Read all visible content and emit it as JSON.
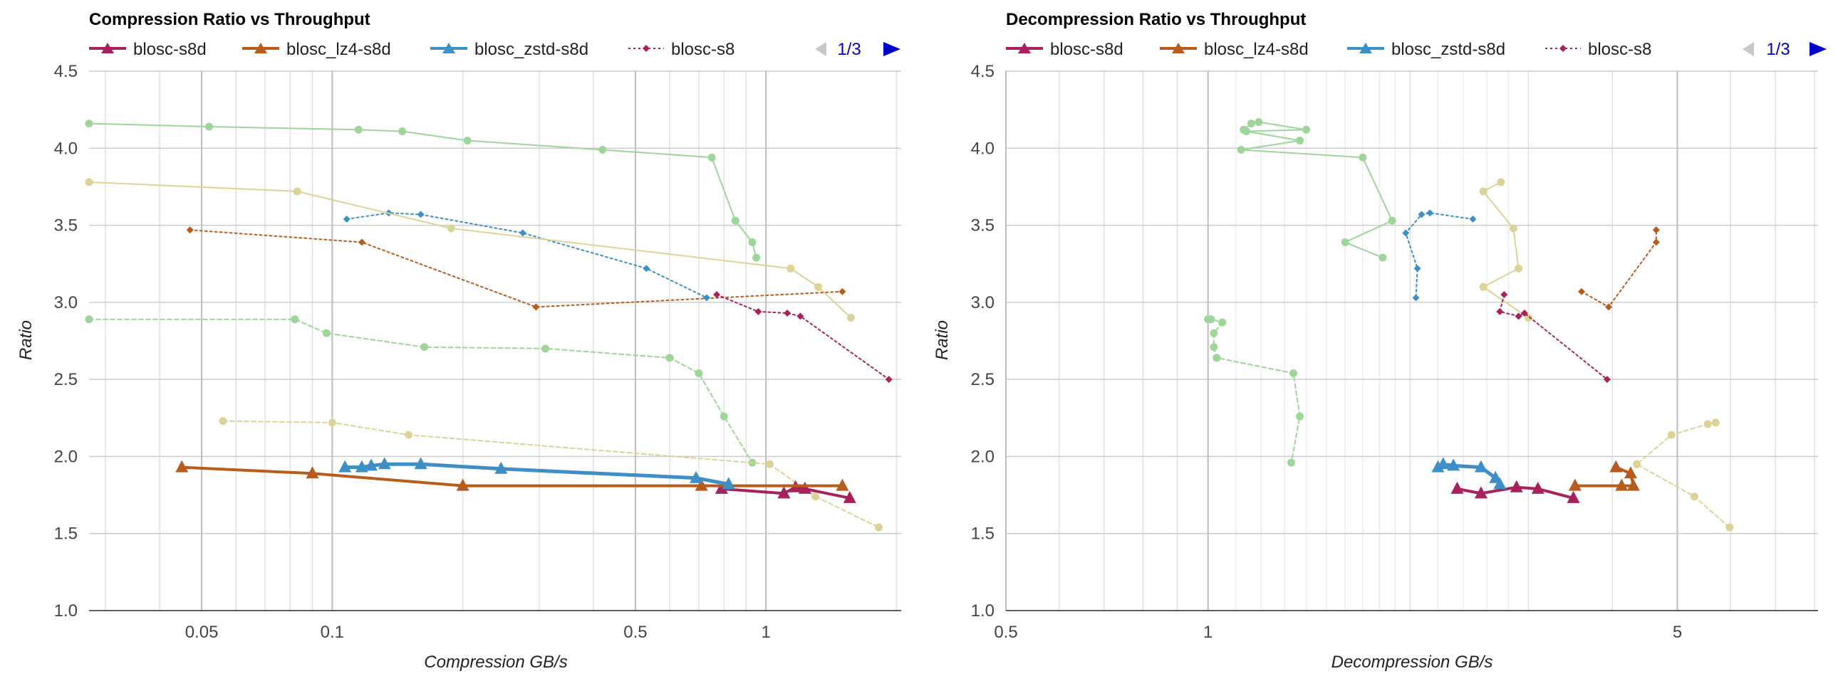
{
  "charts": [
    {
      "id": "compression",
      "title": "Compression Ratio vs Throughput",
      "xlabel": "Compression GB/s",
      "ylabel": "Ratio",
      "x_scale": "log",
      "xlim": [
        0.0275,
        2.05
      ],
      "ylim": [
        1.0,
        4.5
      ],
      "x_major_ticks": [
        {
          "v": 0.05,
          "label": "0.05"
        },
        {
          "v": 0.1,
          "label": "0.1"
        },
        {
          "v": 0.5,
          "label": "0.5"
        },
        {
          "v": 1,
          "label": "1"
        }
      ],
      "x_minor_ticks": [
        0.03,
        0.04,
        0.06,
        0.07,
        0.08,
        0.09,
        0.2,
        0.3,
        0.4,
        0.6,
        0.7,
        0.8,
        0.9,
        2
      ],
      "y_ticks": [
        {
          "v": 1.0,
          "label": "1.0"
        },
        {
          "v": 1.5,
          "label": "1.5"
        },
        {
          "v": 2.0,
          "label": "2.0"
        },
        {
          "v": 2.5,
          "label": "2.5"
        },
        {
          "v": 3.0,
          "label": "3.0"
        },
        {
          "v": 3.5,
          "label": "3.5"
        },
        {
          "v": 4.0,
          "label": "4.0"
        },
        {
          "v": 4.5,
          "label": "4.5"
        }
      ],
      "pager": "1/3"
    },
    {
      "id": "decompression",
      "title": "Decompression Ratio vs Throughput",
      "xlabel": "Decompression GB/s",
      "ylabel": "Ratio",
      "x_scale": "log",
      "xlim": [
        0.5,
        8.1
      ],
      "ylim": [
        1.0,
        4.5
      ],
      "x_major_ticks": [
        {
          "v": 0.5,
          "label": "0.5"
        },
        {
          "v": 1,
          "label": "1"
        },
        {
          "v": 5,
          "label": "5"
        }
      ],
      "x_minor_ticks": [
        0.6,
        0.7,
        0.8,
        0.9,
        2,
        3,
        4,
        6,
        7,
        8
      ],
      "x_extra_lines": [
        1.1,
        1.2,
        1.3,
        1.4,
        1.5,
        1.6,
        1.7,
        1.8,
        1.9,
        2.2,
        2.4,
        2.6,
        2.8
      ],
      "y_ticks": [
        {
          "v": 1.0,
          "label": "1.0"
        },
        {
          "v": 1.5,
          "label": "1.5"
        },
        {
          "v": 2.0,
          "label": "2.0"
        },
        {
          "v": 2.5,
          "label": "2.5"
        },
        {
          "v": 3.0,
          "label": "3.0"
        },
        {
          "v": 3.5,
          "label": "3.5"
        },
        {
          "v": 4.0,
          "label": "4.0"
        },
        {
          "v": 4.5,
          "label": "4.5"
        }
      ],
      "pager": "1/3"
    }
  ],
  "legend": [
    {
      "name": "blosc-s8d",
      "color": "#a8215c",
      "style": "solid-triangle"
    },
    {
      "name": "blosc_lz4-s8d",
      "color": "#b85c1e",
      "style": "solid-triangle"
    },
    {
      "name": "blosc_zstd-s8d",
      "color": "#3d8fc6",
      "style": "solid-triangle"
    },
    {
      "name": "blosc-s8",
      "color": "#a8215c",
      "style": "dotted-diamond"
    }
  ],
  "chart_data": [
    {
      "type": "scatter",
      "title": "Compression Ratio vs Throughput",
      "xlabel": "Compression GB/s",
      "ylabel": "Ratio",
      "x_scale": "log",
      "ylim": [
        1.0,
        4.5
      ],
      "series": [
        {
          "name": "blosc-s8d",
          "color": "#a8215c",
          "width": 4,
          "marker": "triangle",
          "dash": "",
          "points": [
            [
              0.79,
              1.79
            ],
            [
              1.1,
              1.76
            ],
            [
              1.17,
              1.8
            ],
            [
              1.23,
              1.79
            ],
            [
              1.56,
              1.73
            ]
          ]
        },
        {
          "name": "blosc_lz4-s8d",
          "color": "#b85c1e",
          "width": 4,
          "marker": "triangle",
          "dash": "",
          "points": [
            [
              0.045,
              1.93
            ],
            [
              0.09,
              1.89
            ],
            [
              0.2,
              1.81
            ],
            [
              0.71,
              1.81
            ],
            [
              1.5,
              1.81
            ]
          ]
        },
        {
          "name": "blosc_zstd-s8d",
          "color": "#3d8fc6",
          "width": 5,
          "marker": "triangle",
          "dash": "",
          "points": [
            [
              0.107,
              1.93
            ],
            [
              0.117,
              1.93
            ],
            [
              0.123,
              1.94
            ],
            [
              0.132,
              1.95
            ],
            [
              0.16,
              1.95
            ],
            [
              0.245,
              1.92
            ],
            [
              0.69,
              1.86
            ],
            [
              0.82,
              1.82
            ]
          ]
        },
        {
          "name": "blosc-s8",
          "color": "#a8215c",
          "width": 2,
          "marker": "diamond",
          "dash": "3,4",
          "points": [
            [
              0.77,
              3.05
            ],
            [
              0.96,
              2.94
            ],
            [
              1.12,
              2.93
            ],
            [
              1.2,
              2.91
            ],
            [
              1.92,
              2.5
            ]
          ]
        },
        {
          "color": "#b85c1e",
          "width": 2,
          "marker": "diamond",
          "dash": "3,4",
          "points": [
            [
              0.047,
              3.47
            ],
            [
              0.117,
              3.39
            ],
            [
              0.295,
              2.97
            ],
            [
              1.5,
              3.07
            ]
          ]
        },
        {
          "color": "#3d8fc6",
          "width": 2,
          "marker": "diamond",
          "dash": "3,4",
          "points": [
            [
              0.108,
              3.54
            ],
            [
              0.135,
              3.58
            ],
            [
              0.16,
              3.57
            ],
            [
              0.275,
              3.45
            ],
            [
              0.53,
              3.22
            ],
            [
              0.73,
              3.03
            ]
          ]
        },
        {
          "color": "#9ed598",
          "width": 2,
          "marker": "circle",
          "dash": "",
          "points": [
            [
              0.0275,
              4.16
            ],
            [
              0.052,
              4.14
            ],
            [
              0.115,
              4.12
            ],
            [
              0.145,
              4.11
            ],
            [
              0.205,
              4.05
            ],
            [
              0.42,
              3.99
            ],
            [
              0.75,
              3.94
            ],
            [
              0.85,
              3.53
            ],
            [
              0.93,
              3.39
            ],
            [
              0.95,
              3.29
            ]
          ]
        },
        {
          "color": "#ded396",
          "width": 2,
          "marker": "circle",
          "dash": "",
          "points": [
            [
              0.0275,
              3.78
            ],
            [
              0.083,
              3.72
            ],
            [
              0.188,
              3.48
            ],
            [
              1.14,
              3.22
            ],
            [
              1.32,
              3.1
            ],
            [
              1.57,
              2.9
            ]
          ]
        },
        {
          "color": "#9ed598",
          "width": 2,
          "marker": "circle",
          "dash": "6,4",
          "points": [
            [
              0.0275,
              2.89
            ],
            [
              0.082,
              2.89
            ],
            [
              0.097,
              2.8
            ],
            [
              0.163,
              2.71
            ],
            [
              0.31,
              2.7
            ],
            [
              0.6,
              2.64
            ],
            [
              0.7,
              2.54
            ],
            [
              0.8,
              2.26
            ],
            [
              0.93,
              1.96
            ]
          ]
        },
        {
          "color": "#ded396",
          "width": 2,
          "marker": "circle",
          "dash": "6,4",
          "points": [
            [
              0.056,
              2.23
            ],
            [
              0.1,
              2.22
            ],
            [
              0.15,
              2.14
            ],
            [
              1.02,
              1.95
            ],
            [
              1.3,
              1.74
            ],
            [
              1.82,
              1.54
            ]
          ]
        }
      ]
    },
    {
      "type": "scatter",
      "title": "Decompression Ratio vs Throughput",
      "xlabel": "Decompression GB/s",
      "ylabel": "Ratio",
      "x_scale": "log",
      "ylim": [
        1.0,
        4.5
      ],
      "series": [
        {
          "name": "blosc-s8d",
          "color": "#a8215c",
          "width": 4,
          "marker": "triangle",
          "dash": "",
          "points": [
            [
              2.35,
              1.79
            ],
            [
              2.55,
              1.76
            ],
            [
              2.88,
              1.8
            ],
            [
              3.1,
              1.79
            ],
            [
              3.5,
              1.73
            ]
          ]
        },
        {
          "name": "blosc_lz4-s8d",
          "color": "#b85c1e",
          "width": 4,
          "marker": "triangle",
          "dash": "",
          "points": [
            [
              3.52,
              1.81
            ],
            [
              4.13,
              1.81
            ],
            [
              4.3,
              1.81
            ],
            [
              4.26,
              1.89
            ],
            [
              4.05,
              1.93
            ]
          ]
        },
        {
          "name": "blosc_zstd-s8d",
          "color": "#3d8fc6",
          "width": 5,
          "marker": "triangle",
          "dash": "",
          "points": [
            [
              2.2,
              1.93
            ],
            [
              2.24,
              1.95
            ],
            [
              2.32,
              1.94
            ],
            [
              2.55,
              1.93
            ],
            [
              2.68,
              1.86
            ],
            [
              2.72,
              1.82
            ]
          ]
        },
        {
          "name": "blosc-s8",
          "color": "#a8215c",
          "width": 2,
          "marker": "diamond",
          "dash": "3,4",
          "points": [
            [
              2.76,
              3.05
            ],
            [
              2.72,
              2.94
            ],
            [
              2.9,
              2.91
            ],
            [
              2.96,
              2.93
            ],
            [
              3.93,
              2.5
            ]
          ]
        },
        {
          "color": "#b85c1e",
          "width": 2,
          "marker": "diamond",
          "dash": "3,4",
          "points": [
            [
              3.6,
              3.07
            ],
            [
              3.95,
              2.97
            ],
            [
              4.65,
              3.39
            ],
            [
              4.65,
              3.47
            ]
          ]
        },
        {
          "color": "#3d8fc6",
          "width": 2,
          "marker": "diamond",
          "dash": "3,4",
          "points": [
            [
              2.48,
              3.54
            ],
            [
              2.14,
              3.58
            ],
            [
              2.08,
              3.57
            ],
            [
              1.97,
              3.45
            ],
            [
              2.05,
              3.22
            ],
            [
              2.04,
              3.03
            ]
          ]
        },
        {
          "color": "#9ed598",
          "width": 2,
          "marker": "circle",
          "dash": "",
          "points": [
            [
              1.13,
              4.12
            ],
            [
              1.16,
              4.16
            ],
            [
              1.19,
              4.17
            ],
            [
              1.4,
              4.12
            ],
            [
              1.14,
              4.11
            ],
            [
              1.37,
              4.05
            ],
            [
              1.12,
              3.99
            ],
            [
              1.7,
              3.94
            ],
            [
              1.88,
              3.53
            ],
            [
              1.6,
              3.39
            ],
            [
              1.82,
              3.29
            ]
          ]
        },
        {
          "color": "#ded396",
          "width": 2,
          "marker": "circle",
          "dash": "",
          "points": [
            [
              2.73,
              3.78
            ],
            [
              2.57,
              3.72
            ],
            [
              2.85,
              3.48
            ],
            [
              2.9,
              3.22
            ],
            [
              2.57,
              3.1
            ],
            [
              3.0,
              2.9
            ]
          ]
        },
        {
          "color": "#9ed598",
          "width": 2,
          "marker": "circle",
          "dash": "6,4",
          "points": [
            [
              1.0,
              2.89
            ],
            [
              1.01,
              2.89
            ],
            [
              1.05,
              2.87
            ],
            [
              1.02,
              2.8
            ],
            [
              1.02,
              2.71
            ],
            [
              1.03,
              2.64
            ],
            [
              1.34,
              2.54
            ],
            [
              1.37,
              2.26
            ],
            [
              1.33,
              1.96
            ]
          ]
        },
        {
          "color": "#ded396",
          "width": 2,
          "marker": "circle",
          "dash": "6,4",
          "points": [
            [
              5.7,
              2.22
            ],
            [
              5.55,
              2.21
            ],
            [
              4.9,
              2.14
            ],
            [
              4.35,
              1.95
            ],
            [
              5.3,
              1.74
            ],
            [
              5.98,
              1.54
            ]
          ]
        }
      ]
    }
  ]
}
